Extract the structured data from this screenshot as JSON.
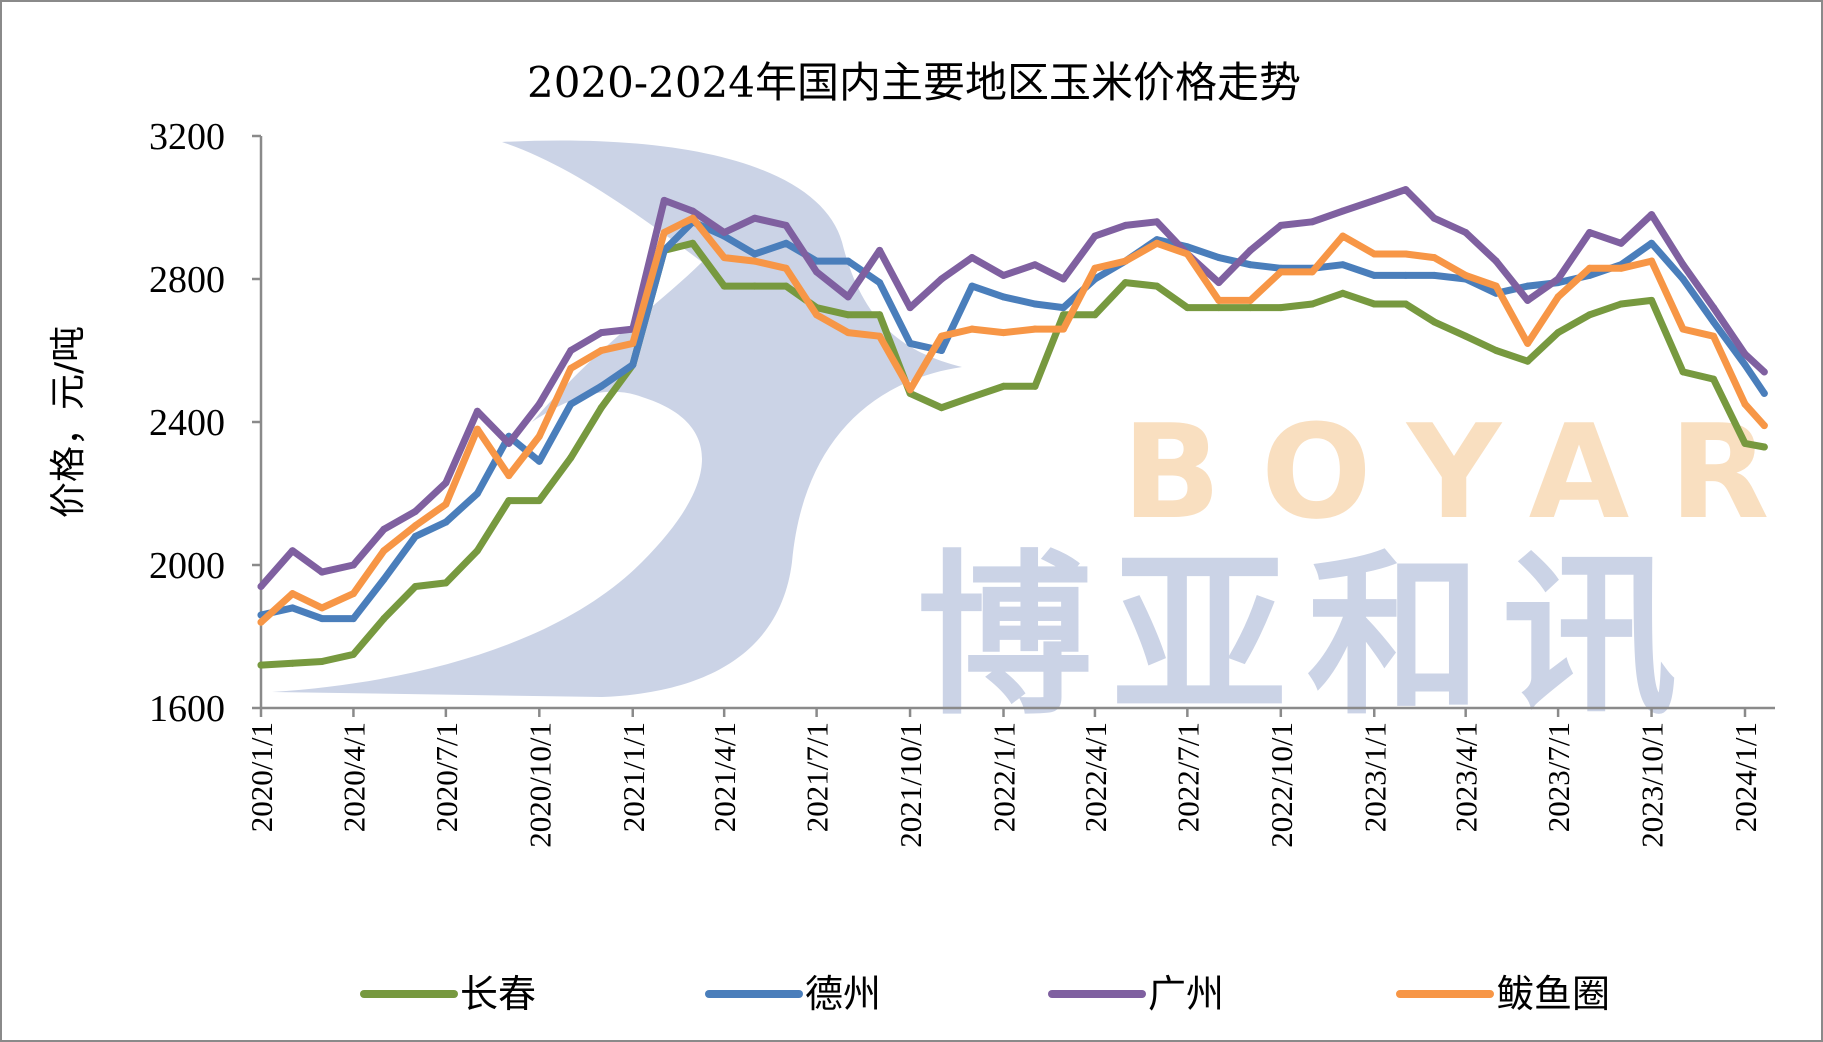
{
  "chart_data": {
    "type": "line",
    "title": "2020-2024年国内主要地区玉米价格走势",
    "ylabel": "价格，元/吨",
    "xlabel": "",
    "ylim": [
      1600,
      3200
    ],
    "yticks": [
      "1600",
      "2000",
      "2400",
      "2800",
      "3200"
    ],
    "xticks": [
      "2020/1/1",
      "2020/4/1",
      "2020/7/1",
      "2020/10/1",
      "2021/1/1",
      "2021/4/1",
      "2021/7/1",
      "2021/10/1",
      "2022/1/1",
      "2022/4/1",
      "2022/7/1",
      "2022/10/1",
      "2023/1/1",
      "2023/4/1",
      "2023/7/1",
      "2023/10/1",
      "2024/1/1"
    ],
    "grid": false,
    "legend_position": "bottom",
    "x": [
      "2020/1/1",
      "2020/2/1",
      "2020/3/1",
      "2020/4/1",
      "2020/5/1",
      "2020/6/1",
      "2020/7/1",
      "2020/8/1",
      "2020/9/1",
      "2020/10/1",
      "2020/11/1",
      "2020/12/1",
      "2021/1/1",
      "2021/2/1",
      "2021/3/1",
      "2021/4/1",
      "2021/5/1",
      "2021/6/1",
      "2021/7/1",
      "2021/8/1",
      "2021/9/1",
      "2021/10/1",
      "2021/11/1",
      "2021/12/1",
      "2022/1/1",
      "2022/2/1",
      "2022/3/1",
      "2022/4/1",
      "2022/5/1",
      "2022/6/1",
      "2022/7/1",
      "2022/8/1",
      "2022/9/1",
      "2022/10/1",
      "2022/11/1",
      "2022/12/1",
      "2023/1/1",
      "2023/2/1",
      "2023/3/1",
      "2023/4/1",
      "2023/5/1",
      "2023/6/1",
      "2023/7/1",
      "2023/8/1",
      "2023/9/1",
      "2023/10/1",
      "2023/11/1",
      "2023/12/1",
      "2024/1/1",
      "2024/1/20"
    ],
    "series": [
      {
        "name": "长春",
        "color": "#77993f",
        "values": [
          1720,
          1725,
          1730,
          1750,
          1850,
          1940,
          1950,
          2040,
          2180,
          2180,
          2300,
          2440,
          2560,
          2880,
          2900,
          2780,
          2780,
          2780,
          2720,
          2700,
          2700,
          2480,
          2440,
          2470,
          2500,
          2500,
          2700,
          2700,
          2790,
          2780,
          2720,
          2720,
          2720,
          2720,
          2730,
          2760,
          2730,
          2730,
          2680,
          2640,
          2600,
          2570,
          2650,
          2700,
          2730,
          2740,
          2540,
          2520,
          2340,
          2330
        ]
      },
      {
        "name": "德州",
        "color": "#4a7ebb",
        "values": [
          1860,
          1880,
          1850,
          1850,
          1960,
          2080,
          2120,
          2200,
          2360,
          2290,
          2450,
          2500,
          2560,
          2880,
          2960,
          2920,
          2870,
          2900,
          2850,
          2850,
          2790,
          2620,
          2600,
          2780,
          2750,
          2730,
          2720,
          2800,
          2850,
          2910,
          2890,
          2860,
          2840,
          2830,
          2830,
          2840,
          2810,
          2810,
          2810,
          2800,
          2760,
          2780,
          2790,
          2810,
          2840,
          2900,
          2800,
          2680,
          2560,
          2480
        ]
      },
      {
        "name": "广州",
        "color": "#7f60a0",
        "values": [
          1940,
          2040,
          1980,
          2000,
          2100,
          2150,
          2230,
          2430,
          2340,
          2450,
          2600,
          2650,
          2660,
          3020,
          2990,
          2930,
          2970,
          2950,
          2820,
          2750,
          2880,
          2720,
          2800,
          2860,
          2810,
          2840,
          2800,
          2920,
          2950,
          2960,
          2870,
          2790,
          2880,
          2950,
          2960,
          2990,
          3020,
          3050,
          2970,
          2930,
          2850,
          2740,
          2800,
          2930,
          2900,
          2980,
          2840,
          2720,
          2590,
          2540
        ]
      },
      {
        "name": "鲅鱼圈",
        "color": "#f79646",
        "values": [
          1840,
          1920,
          1880,
          1920,
          2040,
          2110,
          2170,
          2380,
          2250,
          2360,
          2550,
          2600,
          2620,
          2930,
          2970,
          2860,
          2850,
          2830,
          2700,
          2650,
          2640,
          2490,
          2640,
          2660,
          2650,
          2660,
          2660,
          2830,
          2850,
          2900,
          2870,
          2740,
          2740,
          2820,
          2820,
          2920,
          2870,
          2870,
          2860,
          2810,
          2780,
          2620,
          2750,
          2830,
          2830,
          2850,
          2660,
          2640,
          2450,
          2390
        ]
      }
    ]
  },
  "watermark": {
    "en": "BOYAR",
    "cn": "博亚和讯"
  }
}
